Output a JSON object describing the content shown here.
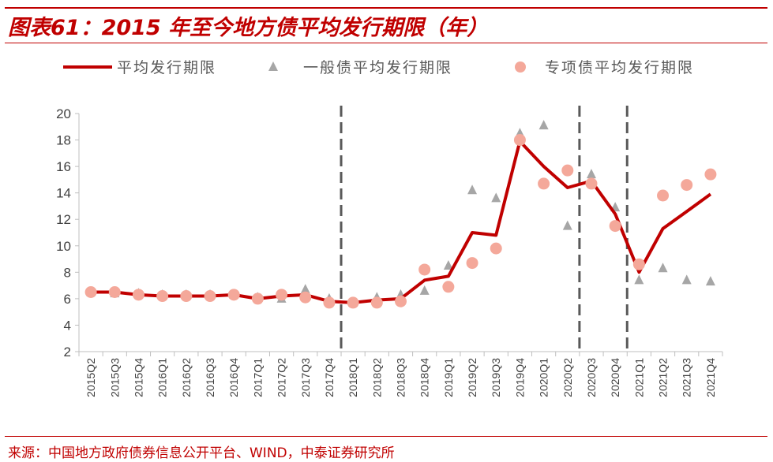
{
  "title": "图表61：2015 年至今地方债平均发行期限（年）",
  "source": "来源：中国地方政府债券信息公开平台、WIND，中泰证券研究所",
  "colors": {
    "accent": "#c00000",
    "line": "#c00000",
    "triangle": "#a6a6a6",
    "circle": "#f4a89a",
    "divider": "#595959",
    "axis": "#bfbfbf"
  },
  "chart_data": {
    "type": "line",
    "title": "",
    "xlabel": "",
    "ylabel": "",
    "ylim": [
      2,
      20
    ],
    "yticks": [
      2,
      4,
      6,
      8,
      10,
      12,
      14,
      16,
      18,
      20
    ],
    "grid": false,
    "legend_position": "top",
    "categories": [
      "2015Q2",
      "2015Q3",
      "2015Q4",
      "2016Q1",
      "2016Q2",
      "2016Q3",
      "2016Q4",
      "2017Q1",
      "2017Q2",
      "2017Q3",
      "2017Q4",
      "2018Q1",
      "2018Q2",
      "2018Q3",
      "2018Q4",
      "2019Q1",
      "2019Q2",
      "2019Q3",
      "2019Q4",
      "2020Q1",
      "2020Q2",
      "2020Q3",
      "2020Q4",
      "2021Q1",
      "2021Q2",
      "2021Q3",
      "2021Q4"
    ],
    "series": [
      {
        "name": "平均发行期限",
        "marker": "line",
        "values": [
          6.5,
          6.5,
          6.3,
          6.2,
          6.2,
          6.2,
          6.3,
          6.0,
          6.2,
          6.3,
          5.8,
          5.7,
          5.9,
          6.0,
          7.4,
          7.7,
          11.0,
          10.8,
          17.9,
          16.0,
          14.4,
          14.9,
          12.4,
          8.0,
          11.3,
          12.6,
          13.9
        ]
      },
      {
        "name": "一般债平均发行期限",
        "marker": "triangle",
        "values": [
          6.5,
          6.4,
          6.4,
          6.3,
          6.3,
          6.3,
          6.3,
          6.1,
          6.0,
          6.7,
          6.0,
          5.7,
          6.1,
          6.3,
          6.6,
          8.5,
          14.2,
          13.6,
          18.5,
          19.1,
          11.5,
          15.4,
          12.9,
          7.4,
          8.3,
          7.4,
          7.3
        ]
      },
      {
        "name": "专项债平均发行期限",
        "marker": "circle",
        "values": [
          6.5,
          6.5,
          6.3,
          6.2,
          6.2,
          6.2,
          6.3,
          6.0,
          6.3,
          6.1,
          5.7,
          5.7,
          5.7,
          5.8,
          8.2,
          6.9,
          8.7,
          9.8,
          18.0,
          14.7,
          15.7,
          14.7,
          11.5,
          8.6,
          13.8,
          14.6,
          15.4
        ]
      }
    ],
    "dividers_after": [
      "2017Q4",
      "2020Q2",
      "2020Q4"
    ]
  }
}
